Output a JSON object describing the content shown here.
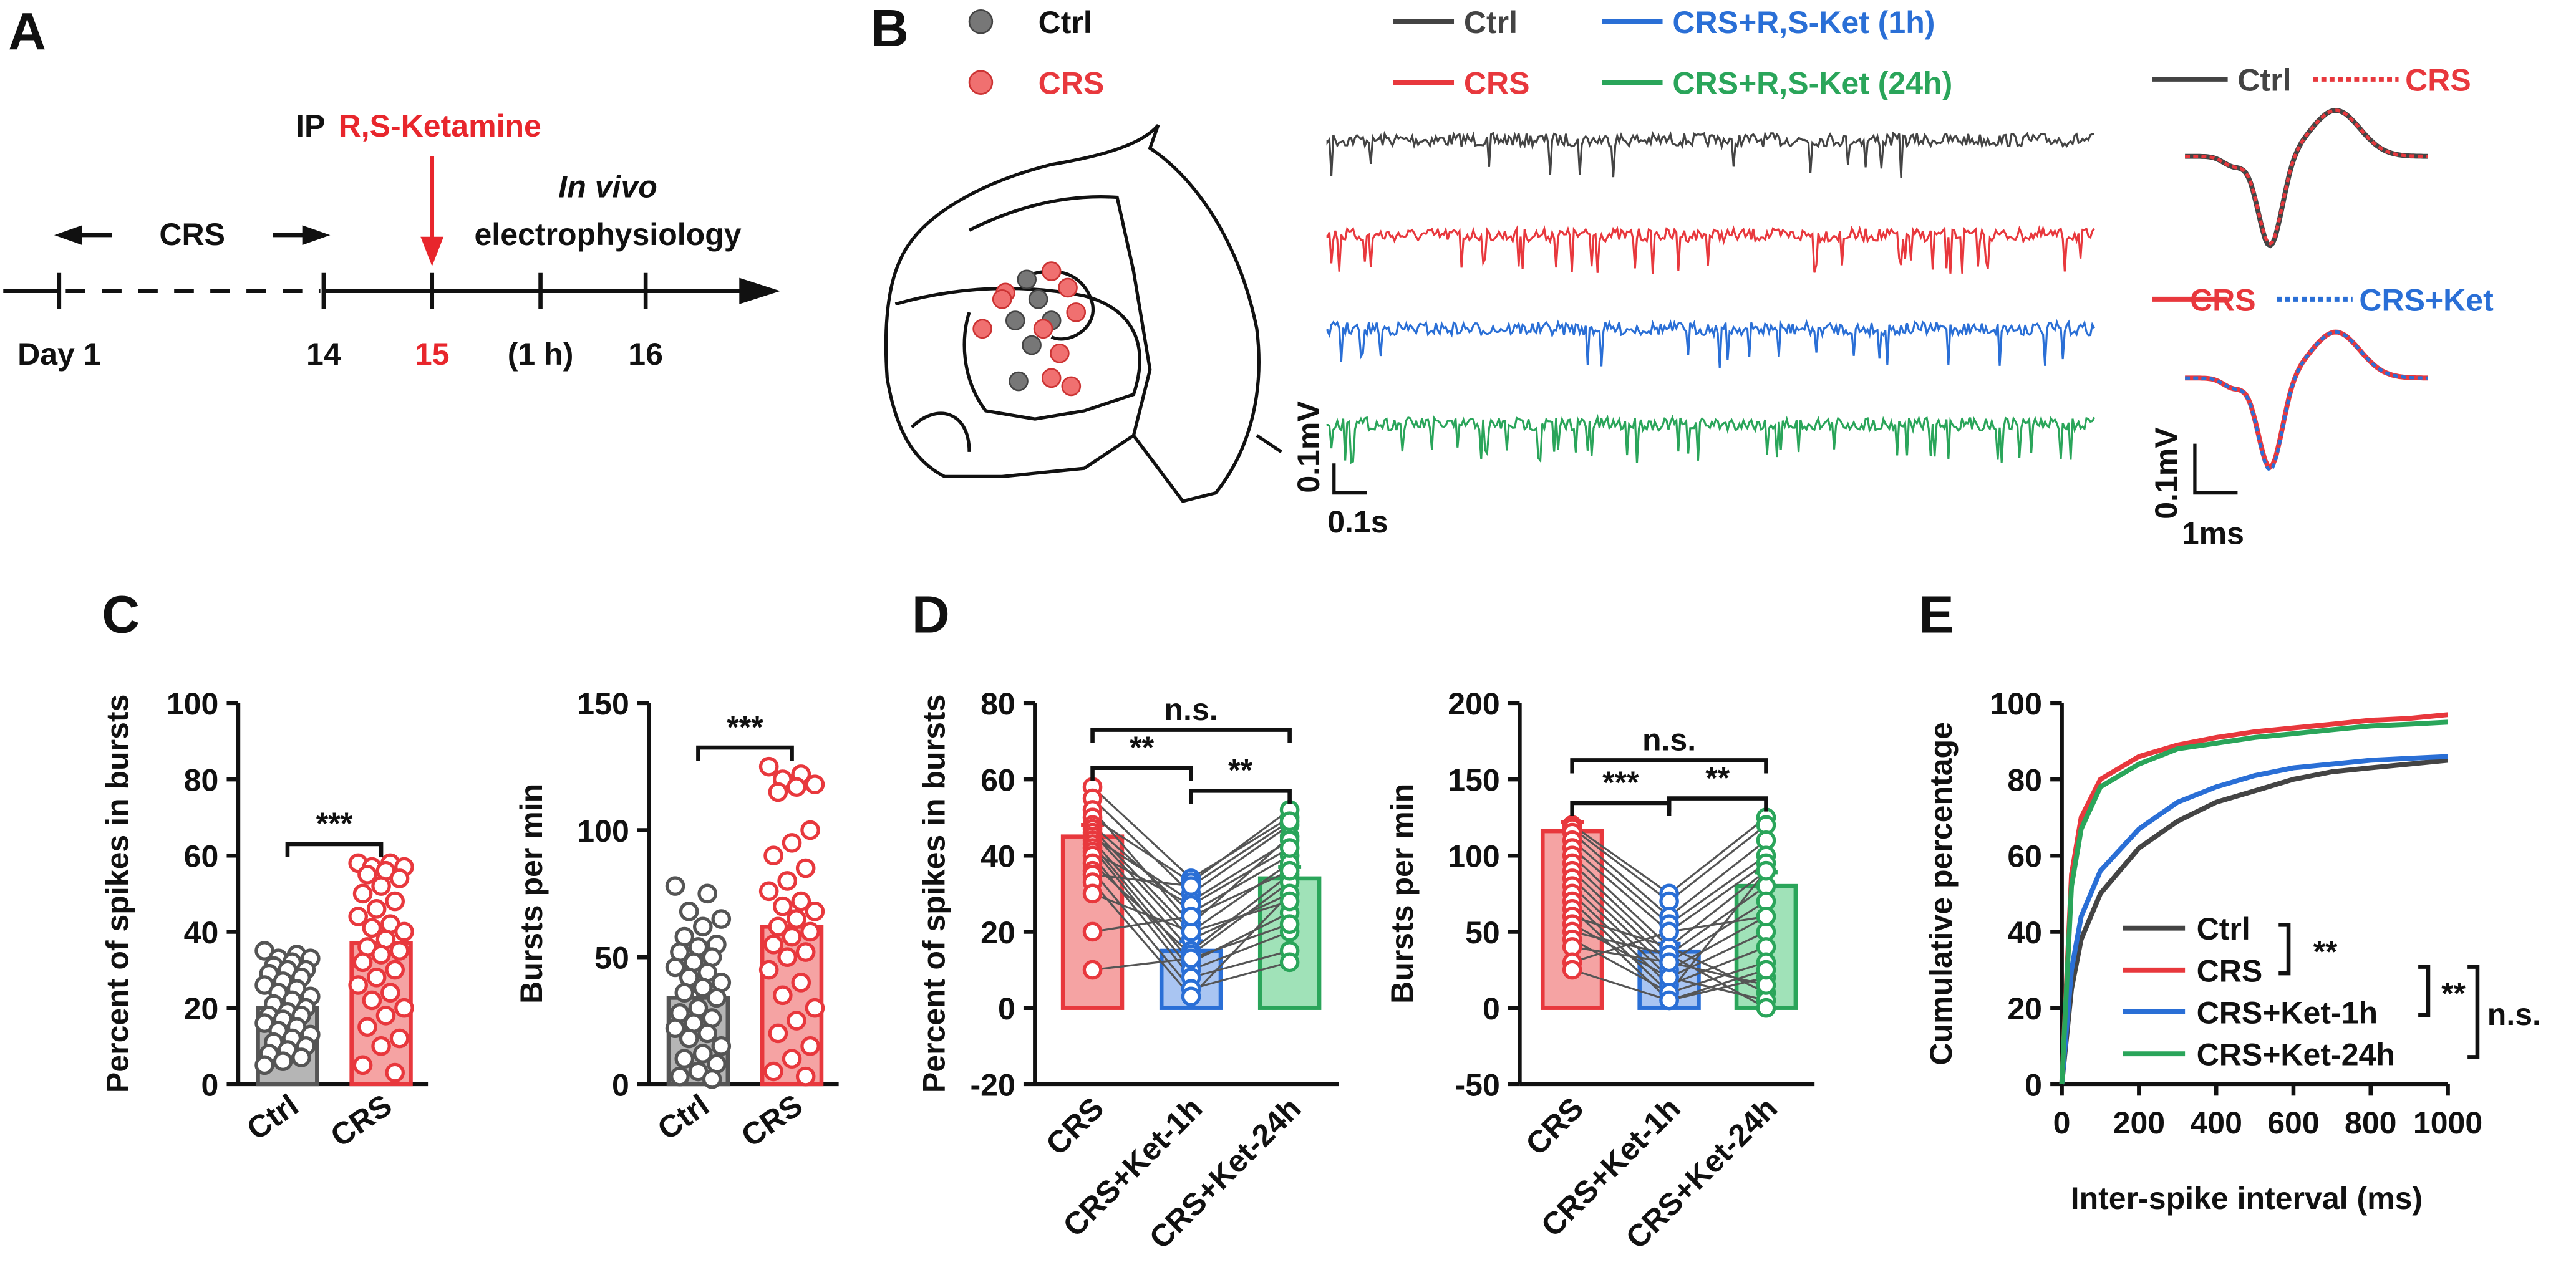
{
  "panel_a": {
    "label": "A",
    "ip": "IP",
    "drug": "R,S-Ketamine",
    "stress": "CRS",
    "method_italic": "In vivo",
    "method": "electrophysiology",
    "days": [
      "Day 1",
      "14",
      "15",
      "(1 h)",
      "16"
    ]
  },
  "panel_b": {
    "label": "B",
    "site_legend": [
      "Ctrl",
      "CRS"
    ],
    "trace_legend": [
      "Ctrl",
      "CRS+R,S-Ket (1h)",
      "CRS",
      "CRS+R,S-Ket (24h)"
    ],
    "trace_scale": [
      "0.1mV",
      "0.1s"
    ],
    "waveform_legend": [
      [
        "Ctrl",
        "CRS"
      ],
      [
        "CRS",
        "CRS+Ket"
      ]
    ],
    "waveform_scale": [
      "0.1mV",
      "1ms"
    ]
  },
  "chart_data": [
    {
      "type": "bar",
      "panel_label": "C",
      "ylabel": "Percent of spikes in bursts",
      "categories": [
        "Ctrl",
        "CRS"
      ],
      "colors": [
        "#555555",
        "#e8383d"
      ],
      "fill_colors": [
        "#b5b5b5",
        "#f5a3a3"
      ],
      "values": [
        20,
        37
      ],
      "errors": [
        1.5,
        3
      ],
      "paired": false,
      "points": [
        [
          35,
          34,
          33,
          33,
          32,
          31,
          30,
          30,
          29,
          28,
          27,
          26,
          25,
          24,
          23,
          22,
          21,
          20,
          19,
          18,
          18,
          17,
          16,
          15,
          14,
          13,
          12,
          11,
          10,
          9,
          8,
          7,
          6,
          5
        ],
        [
          58,
          58,
          57,
          57,
          56,
          55,
          54,
          52,
          50,
          48,
          46,
          44,
          42,
          41,
          40,
          38,
          36,
          35,
          34,
          32,
          30,
          28,
          26,
          24,
          22,
          20,
          18,
          15,
          12,
          10,
          5,
          3
        ]
      ],
      "ylim": [
        0,
        100
      ],
      "yticks": [
        0,
        20,
        40,
        60,
        80,
        100
      ],
      "brackets": [
        {
          "from": 0,
          "to": 1,
          "label": "***"
        }
      ]
    },
    {
      "type": "bar",
      "ylabel": "Bursts per min",
      "categories": [
        "Ctrl",
        "CRS"
      ],
      "colors": [
        "#555555",
        "#e8383d"
      ],
      "fill_colors": [
        "#b5b5b5",
        "#f5a3a3"
      ],
      "values": [
        34,
        62
      ],
      "errors": [
        4,
        6
      ],
      "paired": false,
      "points": [
        [
          78,
          75,
          68,
          65,
          62,
          58,
          55,
          54,
          52,
          50,
          48,
          46,
          44,
          42,
          40,
          38,
          36,
          34,
          30,
          28,
          26,
          24,
          22,
          20,
          18,
          15,
          12,
          10,
          8,
          5,
          3,
          2
        ],
        [
          125,
          122,
          120,
          118,
          117,
          115,
          100,
          95,
          90,
          85,
          80,
          76,
          72,
          70,
          68,
          65,
          62,
          60,
          58,
          55,
          52,
          50,
          45,
          40,
          35,
          30,
          25,
          20,
          15,
          10,
          5,
          3
        ]
      ],
      "ylim": [
        0,
        150
      ],
      "yticks": [
        0,
        50,
        100,
        150
      ],
      "brackets": [
        {
          "from": 0,
          "to": 1,
          "label": "***"
        }
      ]
    },
    {
      "type": "bar",
      "panel_label": "D",
      "ylabel": "Percent of spikes in bursts",
      "categories": [
        "CRS",
        "CRS+Ket-1h",
        "CRS+Ket-24h"
      ],
      "colors": [
        "#e8383d",
        "#2a6fd6",
        "#2aa55a"
      ],
      "fill_colors": [
        "#f5a3a3",
        "#a9c5f2",
        "#a0e2b8"
      ],
      "values": [
        45,
        15,
        34
      ],
      "errors": [
        3,
        2.5,
        3
      ],
      "paired": true,
      "points": [
        [
          58,
          55,
          52,
          50,
          48,
          47,
          46,
          45,
          44,
          43,
          42,
          41,
          40,
          38,
          36,
          35,
          33,
          30,
          20,
          10
        ],
        [
          34,
          30,
          22,
          33,
          25,
          20,
          18,
          28,
          15,
          12,
          10,
          27,
          8,
          14,
          5,
          32,
          3,
          20,
          24,
          13
        ],
        [
          50,
          48,
          45,
          52,
          40,
          38,
          30,
          44,
          35,
          25,
          20,
          42,
          15,
          33,
          12,
          49,
          30,
          28,
          36,
          22
        ]
      ],
      "ylim": [
        -20,
        80
      ],
      "yticks": [
        -20,
        0,
        20,
        40,
        60,
        80
      ],
      "brackets": [
        {
          "from": 0,
          "to": 1,
          "label": "**"
        },
        {
          "from": 1,
          "to": 2,
          "label": "**"
        },
        {
          "from": 0,
          "to": 2,
          "label": "n.s."
        }
      ]
    },
    {
      "type": "bar",
      "ylabel": "Bursts per min",
      "categories": [
        "CRS",
        "CRS+Ket-1h",
        "CRS+Ket-24h"
      ],
      "colors": [
        "#e8383d",
        "#2a6fd6",
        "#2aa55a"
      ],
      "fill_colors": [
        "#f5a3a3",
        "#a9c5f2",
        "#a0e2b8"
      ],
      "values": [
        116,
        37,
        80
      ],
      "errors": [
        6,
        5,
        9
      ],
      "paired": true,
      "points": [
        [
          120,
          118,
          115,
          110,
          105,
          100,
          95,
          90,
          85,
          80,
          75,
          70,
          65,
          60,
          55,
          50,
          45,
          40,
          30,
          25
        ],
        [
          75,
          70,
          60,
          55,
          50,
          40,
          35,
          30,
          25,
          20,
          15,
          10,
          5,
          40,
          20,
          35,
          10,
          30,
          50,
          5
        ],
        [
          125,
          120,
          110,
          100,
          95,
          90,
          80,
          70,
          60,
          50,
          40,
          30,
          20,
          10,
          5,
          0,
          90,
          15,
          60,
          25
        ]
      ],
      "ylim": [
        -50,
        200
      ],
      "yticks": [
        -50,
        0,
        50,
        100,
        150,
        200
      ],
      "brackets": [
        {
          "from": 0,
          "to": 1,
          "label": "***"
        },
        {
          "from": 1,
          "to": 2,
          "label": "**"
        },
        {
          "from": 0,
          "to": 2,
          "label": "n.s."
        }
      ]
    },
    {
      "type": "line",
      "panel_label": "E",
      "xlabel": "Inter-spike interval (ms)",
      "ylabel": "Cumulative percentage",
      "x": [
        0,
        25,
        50,
        100,
        200,
        300,
        400,
        500,
        600,
        700,
        800,
        900,
        1000
      ],
      "series": [
        {
          "name": "Ctrl",
          "color": "#444444",
          "values": [
            0,
            25,
            38,
            50,
            62,
            69,
            74,
            77,
            80,
            82,
            83,
            84,
            85
          ]
        },
        {
          "name": "CRS",
          "color": "#e8383d",
          "values": [
            0,
            55,
            70,
            80,
            86,
            89,
            91,
            92.5,
            93.5,
            94.5,
            95.5,
            96,
            97
          ]
        },
        {
          "name": "CRS+Ket-1h",
          "color": "#2a6fd6",
          "values": [
            0,
            30,
            44,
            56,
            67,
            74,
            78,
            81,
            83,
            84,
            85,
            85.5,
            86
          ]
        },
        {
          "name": "CRS+Ket-24h",
          "color": "#2aa55a",
          "values": [
            0,
            52,
            67,
            78,
            84,
            88,
            89.5,
            91,
            92,
            93,
            94,
            94.5,
            95
          ]
        }
      ],
      "xlim": [
        0,
        1000
      ],
      "xticks": [
        0,
        200,
        400,
        600,
        800,
        1000
      ],
      "ylim": [
        0,
        100
      ],
      "yticks": [
        0,
        20,
        40,
        60,
        80,
        100
      ],
      "legend_brackets": [
        {
          "from": 0,
          "to": 1,
          "label": "**"
        },
        {
          "from": 1,
          "to": 2,
          "label": "**"
        },
        {
          "from": 1,
          "to": 3,
          "label": "n.s."
        }
      ]
    }
  ]
}
